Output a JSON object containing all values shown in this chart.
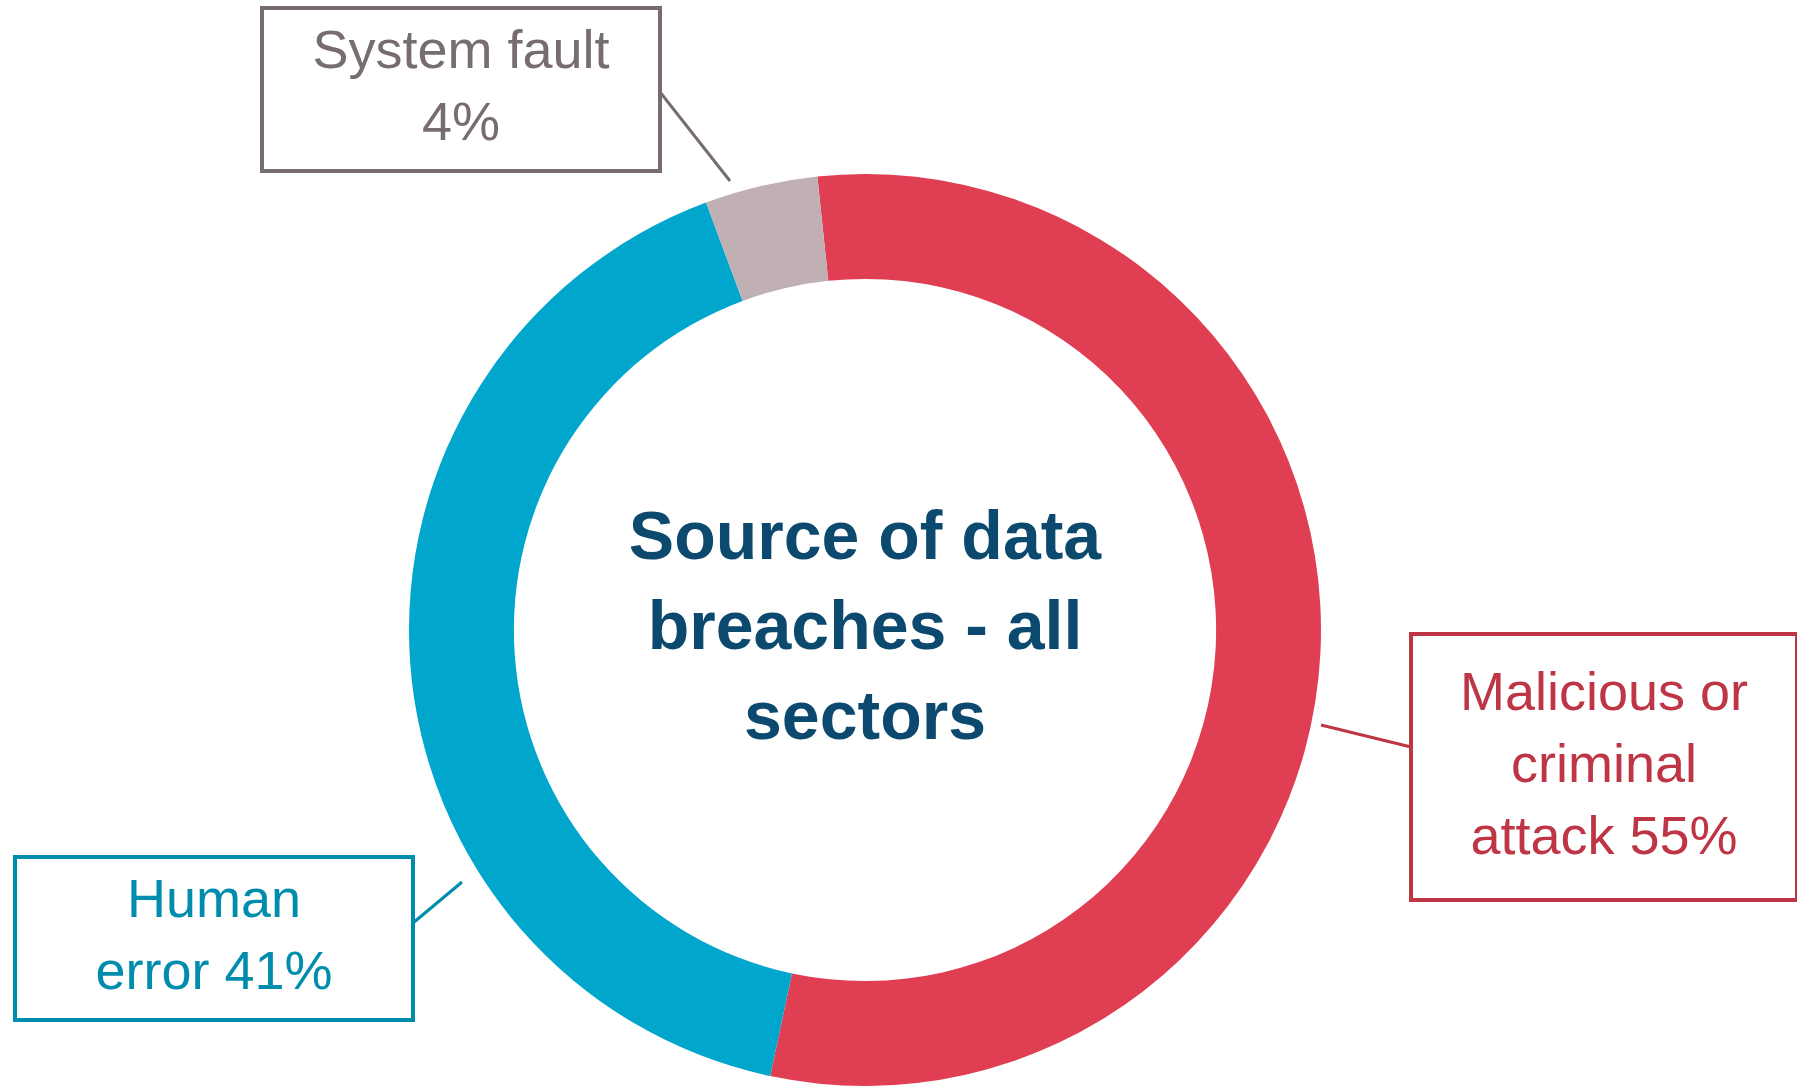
{
  "chart_data": {
    "type": "donut",
    "title": "Source of data breaches - all sectors",
    "categories": [
      "Malicious or criminal attack",
      "Human error",
      "System fault"
    ],
    "values": [
      55,
      41,
      4
    ],
    "colors": [
      "#e03e52",
      "#00a6cc",
      "#c0b0b3"
    ],
    "value_labels": [
      "55%",
      "41%",
      "4%"
    ],
    "legend": false
  }
}
